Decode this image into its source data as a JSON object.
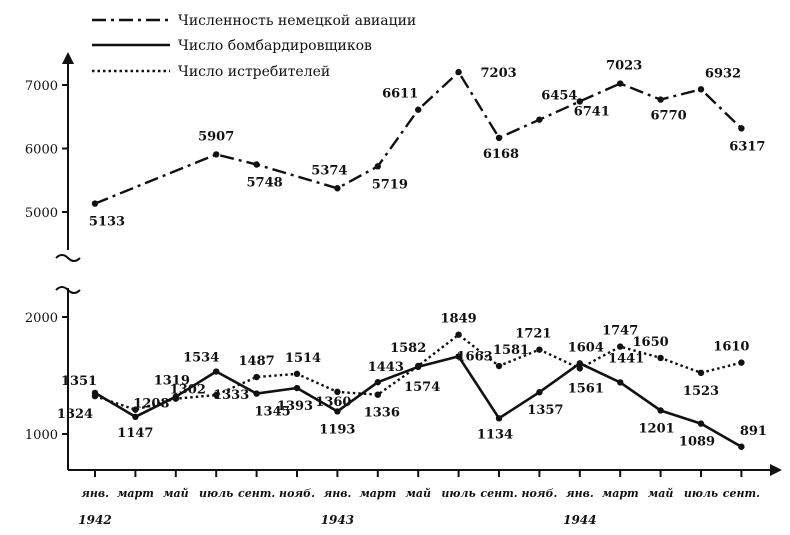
{
  "chart_data": {
    "type": "line",
    "title": "",
    "xlabel": "",
    "ylabel": "",
    "categories": [
      "янв.",
      "март",
      "май",
      "июль",
      "сент.",
      "нояб.",
      "янв.",
      "март",
      "май",
      "июль",
      "сент.",
      "нояб.",
      "янв.",
      "март",
      "май",
      "июль",
      "сент."
    ],
    "years": [
      {
        "label": "1942",
        "index": 0
      },
      {
        "label": "1943",
        "index": 6
      },
      {
        "label": "1944",
        "index": 12
      }
    ],
    "y_axis_break": true,
    "yticks_lower": [
      1000,
      2000
    ],
    "yticks_upper": [
      5000,
      6000,
      7000
    ],
    "legend_position": "top-left",
    "series": [
      {
        "name": "Численность немецкой авиации",
        "style": "dash-dot",
        "color": "#111111",
        "points": [
          {
            "x": 0,
            "value": 5133
          },
          {
            "x": 3,
            "value": 5907
          },
          {
            "x": 4,
            "value": 5748
          },
          {
            "x": 6,
            "value": 5374
          },
          {
            "x": 7,
            "value": 5719
          },
          {
            "x": 8,
            "value": 6611
          },
          {
            "x": 9,
            "value": 7203
          },
          {
            "x": 10,
            "value": 6168
          },
          {
            "x": 11,
            "value": 6454
          },
          {
            "x": 12,
            "value": 6741
          },
          {
            "x": 13,
            "value": 7023
          },
          {
            "x": 14,
            "value": 6770
          },
          {
            "x": 15,
            "value": 6932
          },
          {
            "x": 16,
            "value": 6317
          }
        ]
      },
      {
        "name": "Число бомбардировщиков",
        "style": "solid",
        "color": "#111111",
        "points": [
          {
            "x": 0,
            "value": 1351
          },
          {
            "x": 1,
            "value": 1147
          },
          {
            "x": 2,
            "value": 1319
          },
          {
            "x": 3,
            "value": 1534
          },
          {
            "x": 4,
            "value": 1345
          },
          {
            "x": 5,
            "value": 1393
          },
          {
            "x": 6,
            "value": 1193
          },
          {
            "x": 7,
            "value": 1443
          },
          {
            "x": 8,
            "value": 1574
          },
          {
            "x": 9,
            "value": 1663
          },
          {
            "x": 10,
            "value": 1134
          },
          {
            "x": 11,
            "value": 1357
          },
          {
            "x": 12,
            "value": 1604
          },
          {
            "x": 13,
            "value": 1441
          },
          {
            "x": 14,
            "value": 1201
          },
          {
            "x": 15,
            "value": 1089
          },
          {
            "x": 16,
            "value": 891
          }
        ]
      },
      {
        "name": "Число истребителей",
        "style": "dotted",
        "color": "#111111",
        "points": [
          {
            "x": 0,
            "value": 1324
          },
          {
            "x": 1,
            "value": 1208
          },
          {
            "x": 2,
            "value": 1302
          },
          {
            "x": 3,
            "value": 1333
          },
          {
            "x": 4,
            "value": 1487
          },
          {
            "x": 5,
            "value": 1514
          },
          {
            "x": 6,
            "value": 1360
          },
          {
            "x": 7,
            "value": 1336
          },
          {
            "x": 8,
            "value": 1582
          },
          {
            "x": 9,
            "value": 1849
          },
          {
            "x": 10,
            "value": 1581
          },
          {
            "x": 11,
            "value": 1721
          },
          {
            "x": 12,
            "value": 1561
          },
          {
            "x": 13,
            "value": 1747
          },
          {
            "x": 14,
            "value": 1650
          },
          {
            "x": 15,
            "value": 1523
          },
          {
            "x": 16,
            "value": 1610
          }
        ]
      }
    ]
  }
}
